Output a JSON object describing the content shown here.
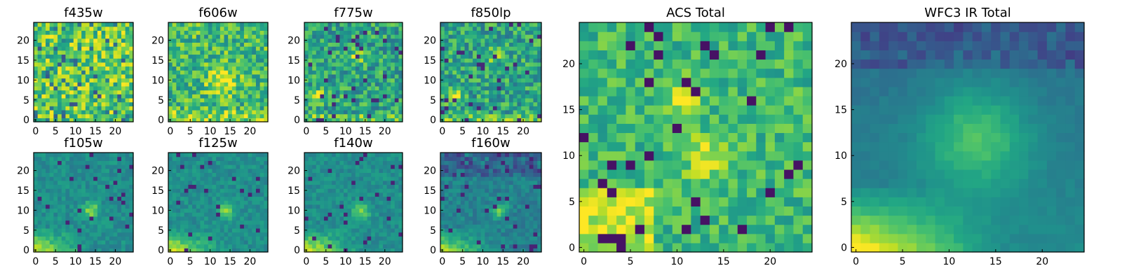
{
  "figure": {
    "description_free": true
  },
  "chart_data": [
    {
      "type": "heatmap",
      "title": "f435w",
      "xticks": [
        "0",
        "5",
        "10",
        "15",
        "20"
      ],
      "yticks": [
        "0",
        "5",
        "10",
        "15",
        "20"
      ],
      "grid": false,
      "colormap": "viridis",
      "resolution": 25,
      "xlim": [
        -0.5,
        24.5
      ],
      "ylim": [
        -0.5,
        24.5
      ],
      "pattern": "noise",
      "seed": 11
    },
    {
      "type": "heatmap",
      "title": "f606w",
      "xticks": [
        "0",
        "5",
        "10",
        "15",
        "20"
      ],
      "yticks": [
        "0",
        "5",
        "10",
        "15",
        "20"
      ],
      "grid": false,
      "colormap": "viridis",
      "resolution": 25,
      "xlim": [
        -0.5,
        24.5
      ],
      "ylim": [
        -0.5,
        24.5
      ],
      "pattern": "noise-bright-center",
      "seed": 23
    },
    {
      "type": "heatmap",
      "title": "f775w",
      "xticks": [
        "0",
        "5",
        "10",
        "15",
        "20"
      ],
      "yticks": [
        "0",
        "5",
        "10",
        "15",
        "20"
      ],
      "grid": false,
      "colormap": "viridis",
      "resolution": 25,
      "xlim": [
        -0.5,
        24.5
      ],
      "ylim": [
        -0.5,
        24.5
      ],
      "pattern": "noise-dim",
      "seed": 37
    },
    {
      "type": "heatmap",
      "title": "f850lp",
      "xticks": [
        "0",
        "5",
        "10",
        "15",
        "20"
      ],
      "yticks": [
        "0",
        "5",
        "10",
        "15",
        "20"
      ],
      "grid": false,
      "colormap": "viridis",
      "resolution": 25,
      "xlim": [
        -0.5,
        24.5
      ],
      "ylim": [
        -0.5,
        24.5
      ],
      "pattern": "noise-dim",
      "seed": 41
    },
    {
      "type": "heatmap",
      "title": "f105w",
      "xticks": [
        "0",
        "5",
        "10",
        "15",
        "20"
      ],
      "yticks": [
        "0",
        "5",
        "10",
        "15",
        "20"
      ],
      "grid": false,
      "colormap": "viridis",
      "resolution": 25,
      "xlim": [
        -0.5,
        24.5
      ],
      "ylim": [
        -0.5,
        24.5
      ],
      "pattern": "smooth-gradient",
      "seed": 53
    },
    {
      "type": "heatmap",
      "title": "f125w",
      "xticks": [
        "0",
        "5",
        "10",
        "15",
        "20"
      ],
      "yticks": [
        "0",
        "5",
        "10",
        "15",
        "20"
      ],
      "grid": false,
      "colormap": "viridis",
      "resolution": 25,
      "xlim": [
        -0.5,
        24.5
      ],
      "ylim": [
        -0.5,
        24.5
      ],
      "pattern": "smooth-gradient",
      "seed": 61
    },
    {
      "type": "heatmap",
      "title": "f140w",
      "xticks": [
        "0",
        "5",
        "10",
        "15",
        "20"
      ],
      "yticks": [
        "0",
        "5",
        "10",
        "15",
        "20"
      ],
      "grid": false,
      "colormap": "viridis",
      "resolution": 25,
      "xlim": [
        -0.5,
        24.5
      ],
      "ylim": [
        -0.5,
        24.5
      ],
      "pattern": "smooth-gradient",
      "seed": 71
    },
    {
      "type": "heatmap",
      "title": "f160w",
      "xticks": [
        "0",
        "5",
        "10",
        "15",
        "20"
      ],
      "yticks": [
        "0",
        "5",
        "10",
        "15",
        "20"
      ],
      "grid": false,
      "colormap": "viridis",
      "resolution": 25,
      "xlim": [
        -0.5,
        24.5
      ],
      "ylim": [
        -0.5,
        24.5
      ],
      "pattern": "smooth-gradient-dark",
      "seed": 83
    },
    {
      "type": "heatmap",
      "title": "ACS Total",
      "xticks": [
        "0",
        "5",
        "10",
        "15",
        "20"
      ],
      "yticks": [
        "0",
        "5",
        "10",
        "15",
        "20"
      ],
      "grid": false,
      "colormap": "viridis",
      "resolution": 25,
      "xlim": [
        -0.5,
        24.5
      ],
      "ylim": [
        -0.5,
        24.5
      ],
      "pattern": "acs",
      "seed": 97
    },
    {
      "type": "heatmap",
      "title": "WFC3 IR Total",
      "xticks": [
        "0",
        "5",
        "10",
        "15",
        "20"
      ],
      "yticks": [
        "0",
        "5",
        "10",
        "15",
        "20"
      ],
      "grid": false,
      "colormap": "viridis",
      "resolution": 25,
      "xlim": [
        -0.5,
        24.5
      ],
      "ylim": [
        -0.5,
        24.5
      ],
      "pattern": "wfc3",
      "seed": 101
    }
  ]
}
